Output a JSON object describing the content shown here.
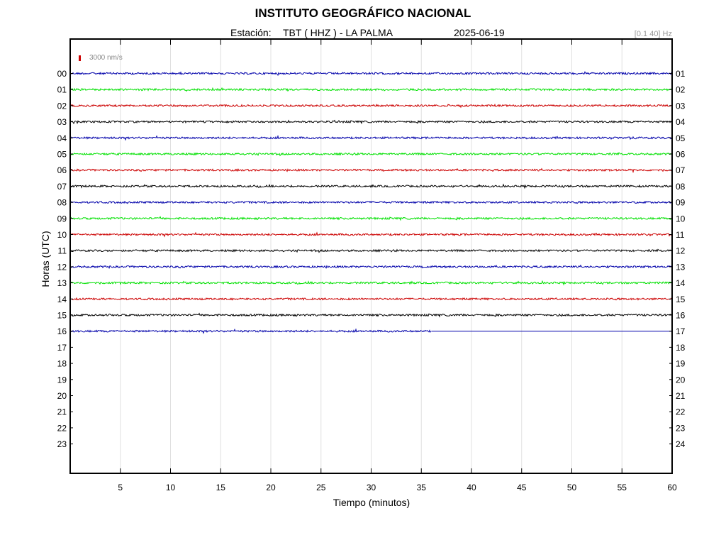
{
  "header": {
    "title": "INSTITUTO GEOGRÁFICO NACIONAL",
    "station_label": "Estación:",
    "station": "TBT ( HHZ ) - LA PALMA",
    "date": "2025-06-19",
    "filter": "[0.1 40] Hz",
    "scale": "3000 nm/s"
  },
  "colors": {
    "cycle": [
      "#0000aa",
      "#00e000",
      "#cc0000",
      "#000000"
    ],
    "scale_marker": "#cc0000",
    "grid": "#e0e0e0"
  },
  "chart_data": {
    "type": "line",
    "chart_kind": "helicorder",
    "title": "INSTITUTO GEOGRÁFICO NACIONAL",
    "xlabel": "Tiempo (minutos)",
    "ylabel": "Horas (UTC)",
    "xlim": [
      0,
      60
    ],
    "x_ticks": [
      "5",
      "10",
      "15",
      "20",
      "25",
      "30",
      "35",
      "40",
      "45",
      "50",
      "55",
      "60"
    ],
    "y_ticks_left": [
      "00",
      "01",
      "02",
      "03",
      "04",
      "05",
      "06",
      "07",
      "08",
      "09",
      "10",
      "11",
      "12",
      "13",
      "14",
      "15",
      "16",
      "17",
      "18",
      "19",
      "20",
      "21",
      "22",
      "23"
    ],
    "y_ticks_right": [
      "01",
      "02",
      "03",
      "04",
      "05",
      "06",
      "07",
      "08",
      "09",
      "10",
      "11",
      "12",
      "13",
      "14",
      "15",
      "16",
      "17",
      "18",
      "19",
      "20",
      "21",
      "22",
      "23",
      "24"
    ],
    "grid": "vertical",
    "series": [
      {
        "hour": "00",
        "minutes_recorded": 60
      },
      {
        "hour": "01",
        "minutes_recorded": 60
      },
      {
        "hour": "02",
        "minutes_recorded": 60
      },
      {
        "hour": "03",
        "minutes_recorded": 60
      },
      {
        "hour": "04",
        "minutes_recorded": 60
      },
      {
        "hour": "05",
        "minutes_recorded": 60
      },
      {
        "hour": "06",
        "minutes_recorded": 60
      },
      {
        "hour": "07",
        "minutes_recorded": 60
      },
      {
        "hour": "08",
        "minutes_recorded": 60
      },
      {
        "hour": "09",
        "minutes_recorded": 60
      },
      {
        "hour": "10",
        "minutes_recorded": 60
      },
      {
        "hour": "11",
        "minutes_recorded": 60
      },
      {
        "hour": "12",
        "minutes_recorded": 60
      },
      {
        "hour": "13",
        "minutes_recorded": 60
      },
      {
        "hour": "14",
        "minutes_recorded": 60
      },
      {
        "hour": "15",
        "minutes_recorded": 60
      },
      {
        "hour": "16",
        "minutes_recorded": 36
      }
    ]
  }
}
